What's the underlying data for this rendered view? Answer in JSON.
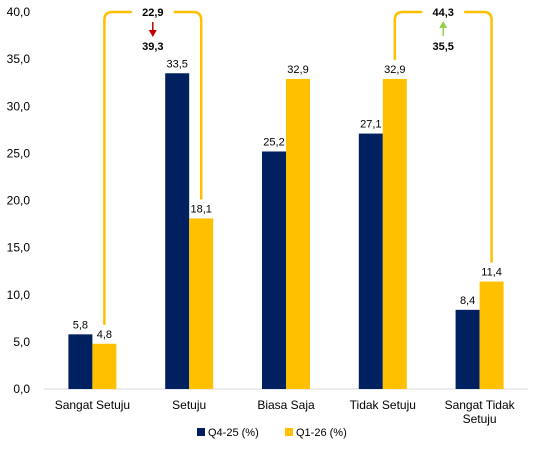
{
  "chart_data": {
    "type": "bar",
    "categories": [
      [
        "Sangat Setuju"
      ],
      [
        "Setuju"
      ],
      [
        "Biasa Saja"
      ],
      [
        "Tidak Setuju"
      ],
      [
        "Sangat Tidak",
        "Setuju"
      ]
    ],
    "series": [
      {
        "name": "Q4-25 (%)",
        "values": [
          5.8,
          33.5,
          25.2,
          27.1,
          8.4
        ],
        "labels": [
          "5,8",
          "33,5",
          "25,2",
          "27,1",
          "8,4"
        ],
        "color": "#002060"
      },
      {
        "name": "Q1-26 (%)",
        "values": [
          4.8,
          18.1,
          32.9,
          32.9,
          11.4
        ],
        "labels": [
          "4,8",
          "18,1",
          "32,9",
          "32,9",
          "11,4"
        ],
        "color": "#FFC000"
      }
    ],
    "ylim": [
      0,
      40
    ],
    "yticks": [
      "0,0",
      "5,0",
      "10,0",
      "15,0",
      "20,0",
      "25,0",
      "30,0",
      "35,0",
      "40,0"
    ],
    "legend_position": "bottom",
    "grid": false,
    "annotations": [
      {
        "from_categories": [
          0,
          1
        ],
        "top_value": "22,9",
        "bottom_value": "39,3",
        "direction": "down",
        "arrow_color": "#C00000"
      },
      {
        "from_categories": [
          3,
          4
        ],
        "top_value": "44,3",
        "bottom_value": "35,5",
        "direction": "up",
        "arrow_color": "#92D050"
      }
    ],
    "bracket_color": "#FFC000"
  }
}
